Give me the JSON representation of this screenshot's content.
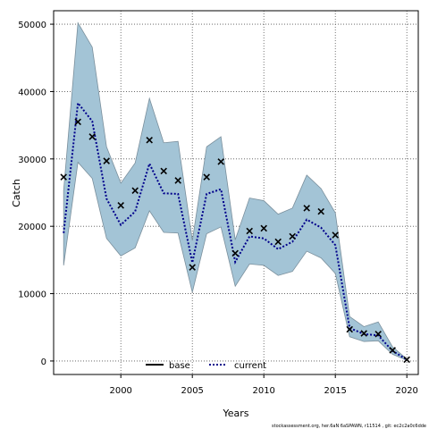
{
  "chart_data": {
    "type": "line",
    "xlabel": "Years",
    "ylabel": "Catch",
    "xlim": [
      1995.3,
      2020.8
    ],
    "ylim": [
      -2000,
      52000
    ],
    "x_ticks": [
      2000,
      2005,
      2010,
      2015,
      2020
    ],
    "y_ticks": [
      0,
      10000,
      20000,
      30000,
      40000,
      50000
    ],
    "grid": true,
    "legend_position": "bottom-center",
    "x": [
      1996,
      1997,
      1998,
      1999,
      2000,
      2001,
      2002,
      2003,
      2004,
      2005,
      2006,
      2007,
      2008,
      2009,
      2010,
      2011,
      2012,
      2013,
      2014,
      2015,
      2016,
      2017,
      2018,
      2019,
      2020
    ],
    "series": [
      {
        "name": "base",
        "style": "points",
        "marker": "x",
        "color": "#000000",
        "values": [
          27300,
          35500,
          33300,
          29700,
          23100,
          25300,
          32800,
          28200,
          26800,
          13900,
          27300,
          29600,
          16000,
          19300,
          19700,
          17700,
          18500,
          22700,
          22200,
          18700,
          4700,
          4100,
          4000,
          1600,
          200
        ]
      },
      {
        "name": "current",
        "style": "dotted-line",
        "color": "#00008b",
        "values": [
          19000,
          38300,
          35600,
          24100,
          20200,
          22200,
          29300,
          24900,
          24800,
          14600,
          24800,
          25500,
          14700,
          18500,
          18200,
          16600,
          17700,
          21000,
          19800,
          17200,
          4900,
          4000,
          3800,
          1500,
          200
        ]
      }
    ],
    "band": {
      "color": "#a3c4d6",
      "stroke": "#7a8f9c",
      "lower": [
        14200,
        29500,
        27100,
        18200,
        15600,
        16800,
        22300,
        19100,
        19000,
        10200,
        18900,
        19900,
        11100,
        14400,
        14200,
        12700,
        13300,
        16300,
        15300,
        13000,
        3600,
        2900,
        3000,
        1000,
        100
      ],
      "upper": [
        25300,
        50200,
        46600,
        31800,
        26400,
        29400,
        39000,
        32400,
        32600,
        17900,
        31800,
        33300,
        18000,
        24200,
        23800,
        21800,
        22700,
        27600,
        25600,
        22000,
        6600,
        5100,
        5800,
        2100,
        300
      ]
    }
  },
  "footnote": "stockassessment.org, her.6aN  6aSPAWN, r11514 ,  git: ec2c2a0c6dde"
}
